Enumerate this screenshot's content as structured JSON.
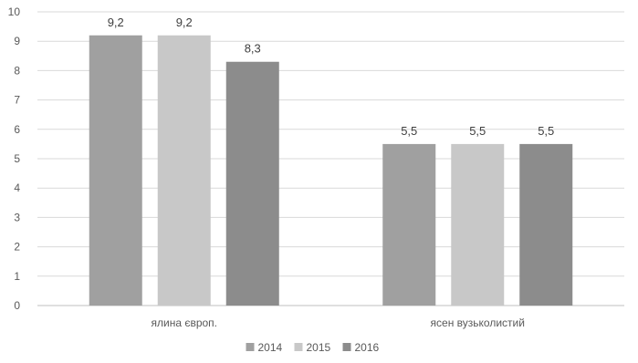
{
  "chart_data": {
    "type": "bar",
    "categories": [
      "ялина європ.",
      "ясен вузьколистий"
    ],
    "series": [
      {
        "name": "2014",
        "values": [
          9.2,
          5.5
        ],
        "color": "#a0a0a0"
      },
      {
        "name": "2015",
        "values": [
          9.2,
          5.5
        ],
        "color": "#c8c8c8"
      },
      {
        "name": "2016",
        "values": [
          8.3,
          5.5
        ],
        "color": "#8c8c8c"
      }
    ],
    "data_labels": [
      [
        "9,2",
        "5,5"
      ],
      [
        "9,2",
        "5,5"
      ],
      [
        "8,3",
        "5,5"
      ]
    ],
    "y_ticks": [
      "0",
      "1",
      "2",
      "3",
      "4",
      "5",
      "6",
      "7",
      "8",
      "9",
      "10"
    ],
    "ylim": [
      0,
      10
    ],
    "grid": true,
    "legend_position": "bottom-center",
    "colors": {
      "grid": "#d9d9d9",
      "axis": "#bfbfbf",
      "text": "#595959"
    }
  }
}
